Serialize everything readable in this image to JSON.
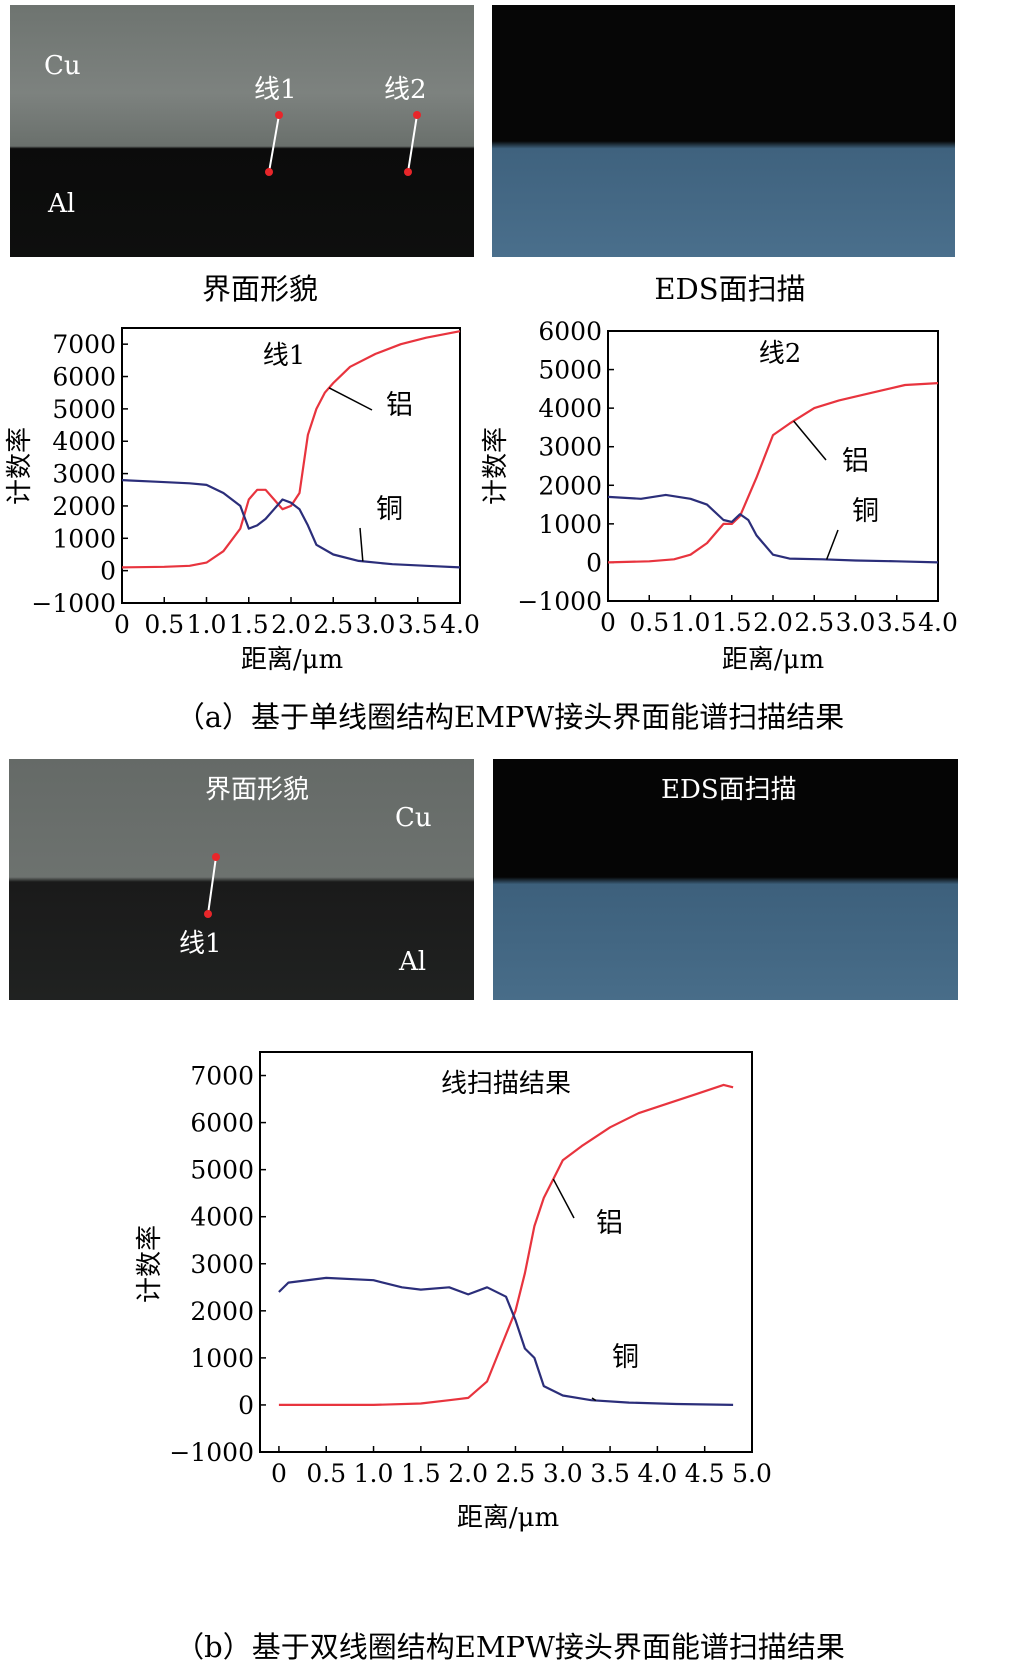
{
  "panel_a": {
    "sem": {
      "cu": "Cu",
      "al": "Al",
      "line1": "线1",
      "line2": "线2"
    },
    "sem_caption": "界面形貌",
    "eds_caption": "EDS面扫描",
    "figure_caption": "（a）基于单线圈结构EMPW接头界面能谱扫描结果"
  },
  "panel_b": {
    "sem": {
      "title": "界面形貌",
      "cu": "Cu",
      "al": "Al",
      "line1": "线1"
    },
    "eds_title": "EDS面扫描",
    "figure_caption": "（b）基于双线圈结构EMPW接头界面能谱扫描结果"
  },
  "chart_data": [
    {
      "type": "line",
      "title": "线1",
      "xlabel": "距离/μm",
      "ylabel": "计数率",
      "xlim": [
        0,
        4.0
      ],
      "ylim": [
        -1000,
        7500
      ],
      "x_ticks": [
        "0",
        "0.5",
        "1.0",
        "1.5",
        "2.0",
        "2.5",
        "3.0",
        "3.5",
        "4.0"
      ],
      "y_ticks": [
        "7000",
        "6000",
        "5000",
        "4000",
        "3000",
        "2000",
        "1000",
        "0",
        "−1000"
      ],
      "series": [
        {
          "name": "铝",
          "color": "#e8343e",
          "x": [
            0,
            0.5,
            0.8,
            1.0,
            1.2,
            1.4,
            1.5,
            1.6,
            1.7,
            1.8,
            1.9,
            2.0,
            2.1,
            2.2,
            2.3,
            2.4,
            2.5,
            2.7,
            3.0,
            3.3,
            3.6,
            4.0
          ],
          "values": [
            100,
            120,
            150,
            250,
            600,
            1300,
            2200,
            2500,
            2500,
            2200,
            1900,
            2000,
            2400,
            4200,
            5000,
            5500,
            5800,
            6300,
            6700,
            7000,
            7200,
            7400
          ]
        },
        {
          "name": "铜",
          "color": "#2b2e7a",
          "x": [
            0,
            0.4,
            0.8,
            1.0,
            1.2,
            1.4,
            1.5,
            1.6,
            1.7,
            1.8,
            1.9,
            2.0,
            2.1,
            2.2,
            2.3,
            2.5,
            2.8,
            3.2,
            3.6,
            4.0
          ],
          "values": [
            2800,
            2750,
            2700,
            2650,
            2400,
            2000,
            1300,
            1400,
            1600,
            1900,
            2200,
            2100,
            1900,
            1400,
            800,
            500,
            300,
            200,
            150,
            100
          ]
        }
      ],
      "annotations": [
        "铝",
        "铜"
      ]
    },
    {
      "type": "line",
      "title": "线2",
      "xlabel": "距离/μm",
      "ylabel": "计数率",
      "xlim": [
        0,
        4.0
      ],
      "ylim": [
        -1000,
        6000
      ],
      "x_ticks": [
        "0",
        "0.5",
        "1.0",
        "1.5",
        "2.0",
        "2.5",
        "3.0",
        "3.5",
        "4.0"
      ],
      "y_ticks": [
        "6000",
        "5000",
        "4000",
        "3000",
        "2000",
        "1000",
        "0",
        "−1000"
      ],
      "series": [
        {
          "name": "铝",
          "color": "#e8343e",
          "x": [
            0,
            0.5,
            0.8,
            1.0,
            1.2,
            1.4,
            1.5,
            1.6,
            1.8,
            2.0,
            2.2,
            2.5,
            2.8,
            3.2,
            3.6,
            4.0
          ],
          "values": [
            0,
            30,
            80,
            200,
            500,
            1000,
            1000,
            1200,
            2200,
            3300,
            3600,
            4000,
            4200,
            4400,
            4600,
            4650
          ]
        },
        {
          "name": "铜",
          "color": "#2b2e7a",
          "x": [
            0,
            0.4,
            0.7,
            1.0,
            1.2,
            1.4,
            1.5,
            1.6,
            1.7,
            1.8,
            2.0,
            2.2,
            2.6,
            3.0,
            3.5,
            4.0
          ],
          "values": [
            1700,
            1650,
            1750,
            1650,
            1500,
            1100,
            1050,
            1250,
            1100,
            700,
            200,
            100,
            80,
            50,
            30,
            0
          ]
        }
      ],
      "annotations": [
        "铝",
        "铜"
      ]
    },
    {
      "type": "line",
      "title": "线扫描结果",
      "xlabel": "距离/μm",
      "ylabel": "计数率",
      "xlim": [
        -0.2,
        5.0
      ],
      "ylim": [
        -1000,
        7500
      ],
      "x_ticks": [
        "0",
        "0.5",
        "1.0",
        "1.5",
        "2.0",
        "2.5",
        "3.0",
        "3.5",
        "4.0",
        "4.5",
        "5.0"
      ],
      "y_ticks": [
        "7000",
        "6000",
        "5000",
        "4000",
        "3000",
        "2000",
        "1000",
        "0",
        "−1000"
      ],
      "series": [
        {
          "name": "铝",
          "color": "#e8343e",
          "x": [
            0,
            0.5,
            1.0,
            1.5,
            1.8,
            2.0,
            2.2,
            2.4,
            2.5,
            2.6,
            2.7,
            2.8,
            2.9,
            3.0,
            3.2,
            3.5,
            3.8,
            4.1,
            4.4,
            4.7,
            4.8
          ],
          "values": [
            0,
            0,
            0,
            30,
            100,
            150,
            500,
            1500,
            2000,
            2800,
            3800,
            4400,
            4800,
            5200,
            5500,
            5900,
            6200,
            6400,
            6600,
            6800,
            6750
          ]
        },
        {
          "name": "铜",
          "color": "#2b2e7a",
          "x": [
            0,
            0.1,
            0.5,
            1.0,
            1.3,
            1.5,
            1.8,
            2.0,
            2.2,
            2.4,
            2.5,
            2.6,
            2.7,
            2.8,
            3.0,
            3.3,
            3.7,
            4.2,
            4.8
          ],
          "values": [
            2400,
            2600,
            2700,
            2650,
            2500,
            2450,
            2500,
            2350,
            2500,
            2300,
            1800,
            1200,
            1000,
            400,
            200,
            100,
            50,
            20,
            0
          ]
        }
      ],
      "annotations": [
        "铝",
        "铜"
      ]
    }
  ]
}
